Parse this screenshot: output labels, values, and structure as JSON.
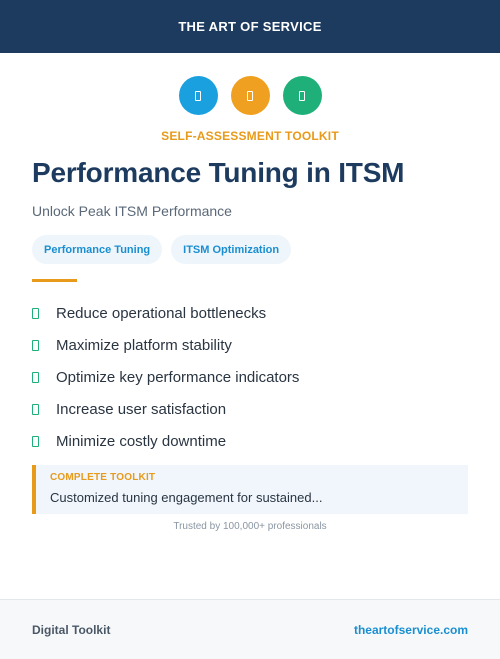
{
  "header": {
    "brand": "THE ART OF SERVICE"
  },
  "icons": [
    {
      "name": "document-icon",
      "color": "#1aa0df"
    },
    {
      "name": "clipboard-icon",
      "color": "#f0a020"
    },
    {
      "name": "chart-icon",
      "color": "#1fb07a"
    }
  ],
  "hero": {
    "kicker": "SELF-ASSESSMENT TOOLKIT",
    "title": "Performance Tuning in ITSM",
    "subtitle": "Unlock Peak ITSM Performance"
  },
  "tags": [
    "Performance Tuning",
    "ITSM Optimization"
  ],
  "features": [
    "Reduce operational bottlenecks",
    "Maximize platform stability",
    "Optimize key performance indicators",
    "Increase user satisfaction",
    "Minimize costly downtime"
  ],
  "callout": {
    "label": "COMPLETE TOOLKIT",
    "text": "Customized tuning engagement for sustained..."
  },
  "trusted": "Trusted by 100,000+ professionals",
  "footer": {
    "left": "Digital Toolkit",
    "right": "theartofservice.com"
  }
}
